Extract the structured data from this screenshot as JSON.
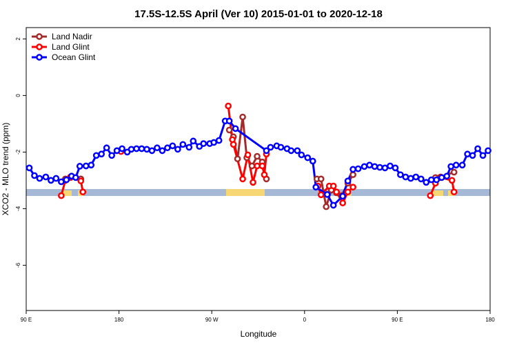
{
  "chart_data": {
    "type": "line",
    "title": "17.5S-12.5S April (Ver 10)   2015-01-01 to 2020-12-18",
    "x_label": "Longitude",
    "y_label": "XCO2 - MLO trend (ppm)",
    "xlim": [
      90,
      540
    ],
    "ylim": [
      -7.6,
      2.4
    ],
    "xticks": [
      {
        "value": 90,
        "label": "90 E"
      },
      180,
      {
        "value": 270,
        "label": "90 W"
      },
      {
        "value": 360,
        "label": "0"
      },
      {
        "value": 450,
        "label": "90 E"
      },
      {
        "value": 540,
        "label": "180"
      }
    ],
    "yticks": [
      2,
      0,
      -2,
      -4,
      -6
    ],
    "legend": "top-left",
    "series": [
      {
        "name": "Land Nadir",
        "color": "#a52a2a",
        "x": [
          128,
          133,
          143,
          null,
          287,
          291,
          295,
          300,
          304,
          309,
          314,
          319,
          323,
          null,
          372,
          376,
          381,
          386,
          391,
          396,
          402,
          407,
          null,
          487,
          492,
          505
        ],
        "values": [
          -2.95,
          -2.9,
          -2.95,
          null,
          -1.22,
          -1.46,
          -2.24,
          -0.76,
          -2.2,
          -2.49,
          -2.15,
          -2.35,
          -2.95,
          null,
          -2.95,
          -2.95,
          -3.93,
          -3.34,
          -3.44,
          -3.54,
          -3.1,
          -2.8,
          null,
          -2.9,
          -2.88,
          -2.71
        ]
      },
      {
        "name": "Land Glint",
        "color": "#ff0000",
        "x": [
          124,
          128,
          133,
          143,
          145,
          null,
          182,
          null,
          286,
          290,
          291,
          300,
          305,
          310,
          314,
          319,
          321,
          323,
          null,
          373,
          376,
          384,
          388,
          391,
          397,
          402,
          407,
          null,
          482,
          487,
          492,
          503,
          505
        ],
        "values": [
          -3.54,
          -3.0,
          -2.88,
          -3.02,
          -3.41,
          null,
          -1.98,
          null,
          -0.37,
          -1.56,
          -1.73,
          -2.95,
          -2.1,
          -3.07,
          -2.49,
          -2.49,
          -2.8,
          -2.07,
          null,
          -3.2,
          -3.51,
          -3.2,
          -3.2,
          -3.41,
          -3.8,
          -3.41,
          -3.24,
          null,
          -3.54,
          -3.1,
          -2.9,
          -3.0,
          -3.41
        ]
      },
      {
        "name": "Ocean Glint",
        "color": "#0000ff",
        "x": [
          93,
          98,
          103,
          109,
          114,
          119,
          124,
          129,
          134,
          138,
          142,
          148,
          153,
          158,
          163,
          168,
          173,
          178,
          183,
          188,
          192,
          197,
          202,
          207,
          212,
          217,
          222,
          227,
          232,
          237,
          242,
          248,
          252,
          258,
          262,
          268,
          272,
          277,
          283,
          287,
          293,
          323,
          327,
          333,
          337,
          343,
          347,
          353,
          357,
          363,
          368,
          371,
          382,
          388,
          397,
          402,
          407,
          412,
          418,
          423,
          428,
          433,
          438,
          443,
          448,
          453,
          458,
          463,
          468,
          473,
          478,
          483,
          488,
          493,
          498,
          502,
          507,
          513,
          518,
          523,
          528,
          533,
          538
        ],
        "values": [
          -2.56,
          -2.83,
          -2.93,
          -2.88,
          -3.0,
          -2.93,
          -3.05,
          -2.98,
          -2.85,
          -2.9,
          -2.5,
          -2.49,
          -2.46,
          -2.12,
          -2.07,
          -1.85,
          -2.12,
          -1.95,
          -1.88,
          -2.0,
          -1.9,
          -1.88,
          -1.88,
          -1.9,
          -1.95,
          -1.85,
          -1.95,
          -1.85,
          -1.78,
          -1.9,
          -1.73,
          -1.83,
          -1.61,
          -1.8,
          -1.7,
          -1.7,
          -1.66,
          -1.59,
          -0.9,
          -0.9,
          -1.17,
          -1.95,
          -1.83,
          -1.78,
          -1.83,
          -1.88,
          -1.95,
          -1.95,
          -2.1,
          -2.2,
          -2.32,
          -3.24,
          -3.5,
          -3.88,
          -3.56,
          -3.02,
          -2.61,
          -2.59,
          -2.51,
          -2.46,
          -2.51,
          -2.54,
          -2.56,
          -2.49,
          -2.56,
          -2.8,
          -2.88,
          -2.93,
          -2.88,
          -2.95,
          -3.07,
          -2.98,
          -2.98,
          -2.9,
          -2.85,
          -2.51,
          -2.46,
          -2.46,
          -2.07,
          -2.12,
          -1.88,
          -2.12,
          -1.95
        ]
      }
    ]
  }
}
